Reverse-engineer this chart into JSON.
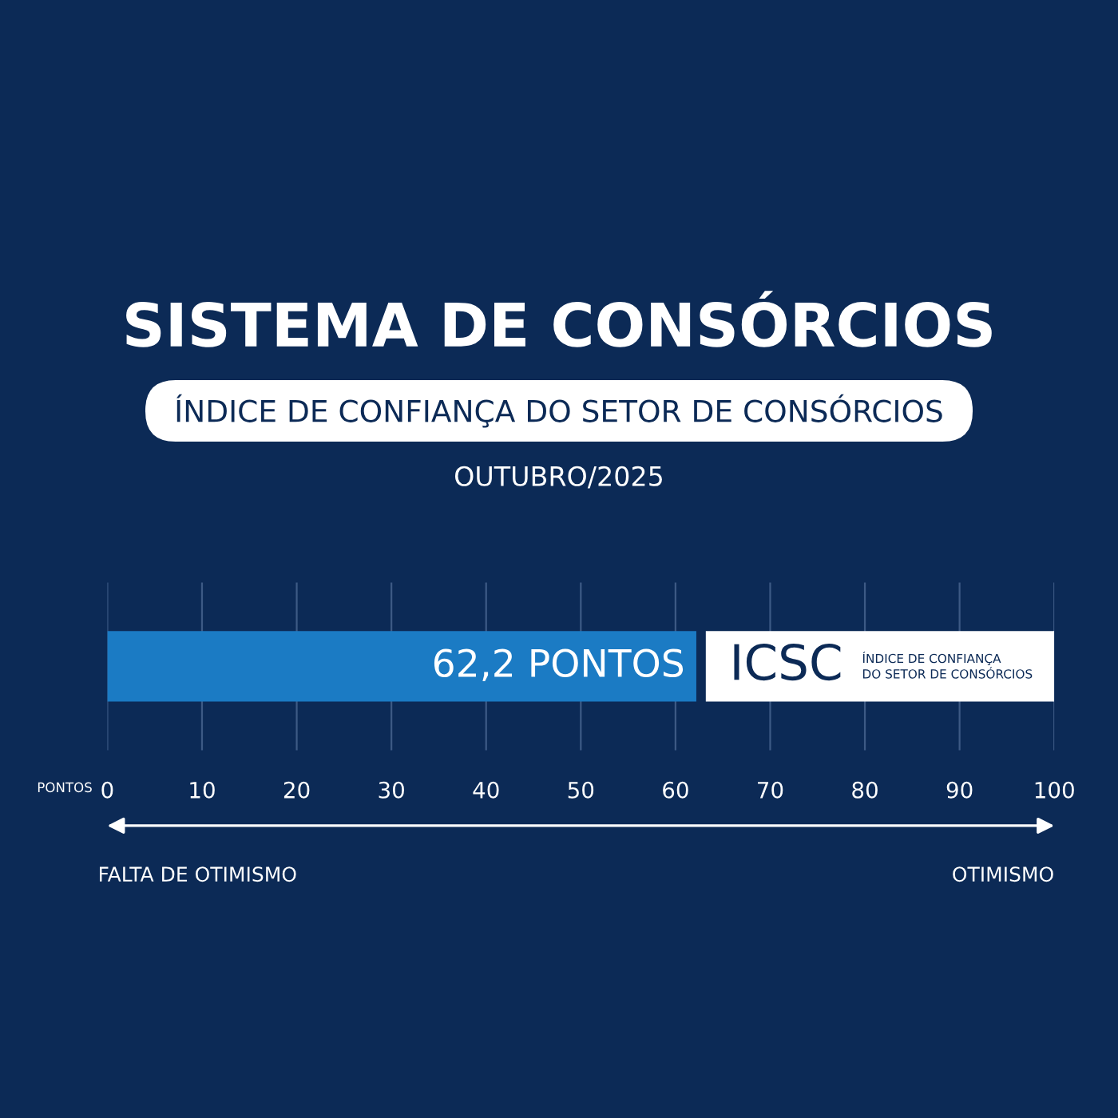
{
  "chart_data": {
    "type": "bar",
    "orientation": "horizontal",
    "title": "SISTEMA DE CONSÓRCIOS",
    "subtitle": "ÍNDICE DE CONFIANÇA DO SETOR DE CONSÓRCIOS",
    "categories": [
      null
    ],
    "values": [
      62.2
    ],
    "color": "#1b7bc4",
    "value_labels": [
      "62,2 PONTOS"
    ],
    "xlabel": "PONTOS",
    "xlim": [
      0,
      100
    ],
    "xticks": [
      0,
      10,
      20,
      30,
      40,
      50,
      60,
      70,
      80,
      90,
      100
    ],
    "grid": "x",
    "legend": false,
    "annotations": [
      "OUTUBRO/2025",
      "ICSC",
      "ÍNDICE DE CONFIANÇA\nDO SETOR DE CONSÓRCIOS",
      "FALTA DE OTIMISMO",
      "OTIMISMO"
    ]
  }
}
